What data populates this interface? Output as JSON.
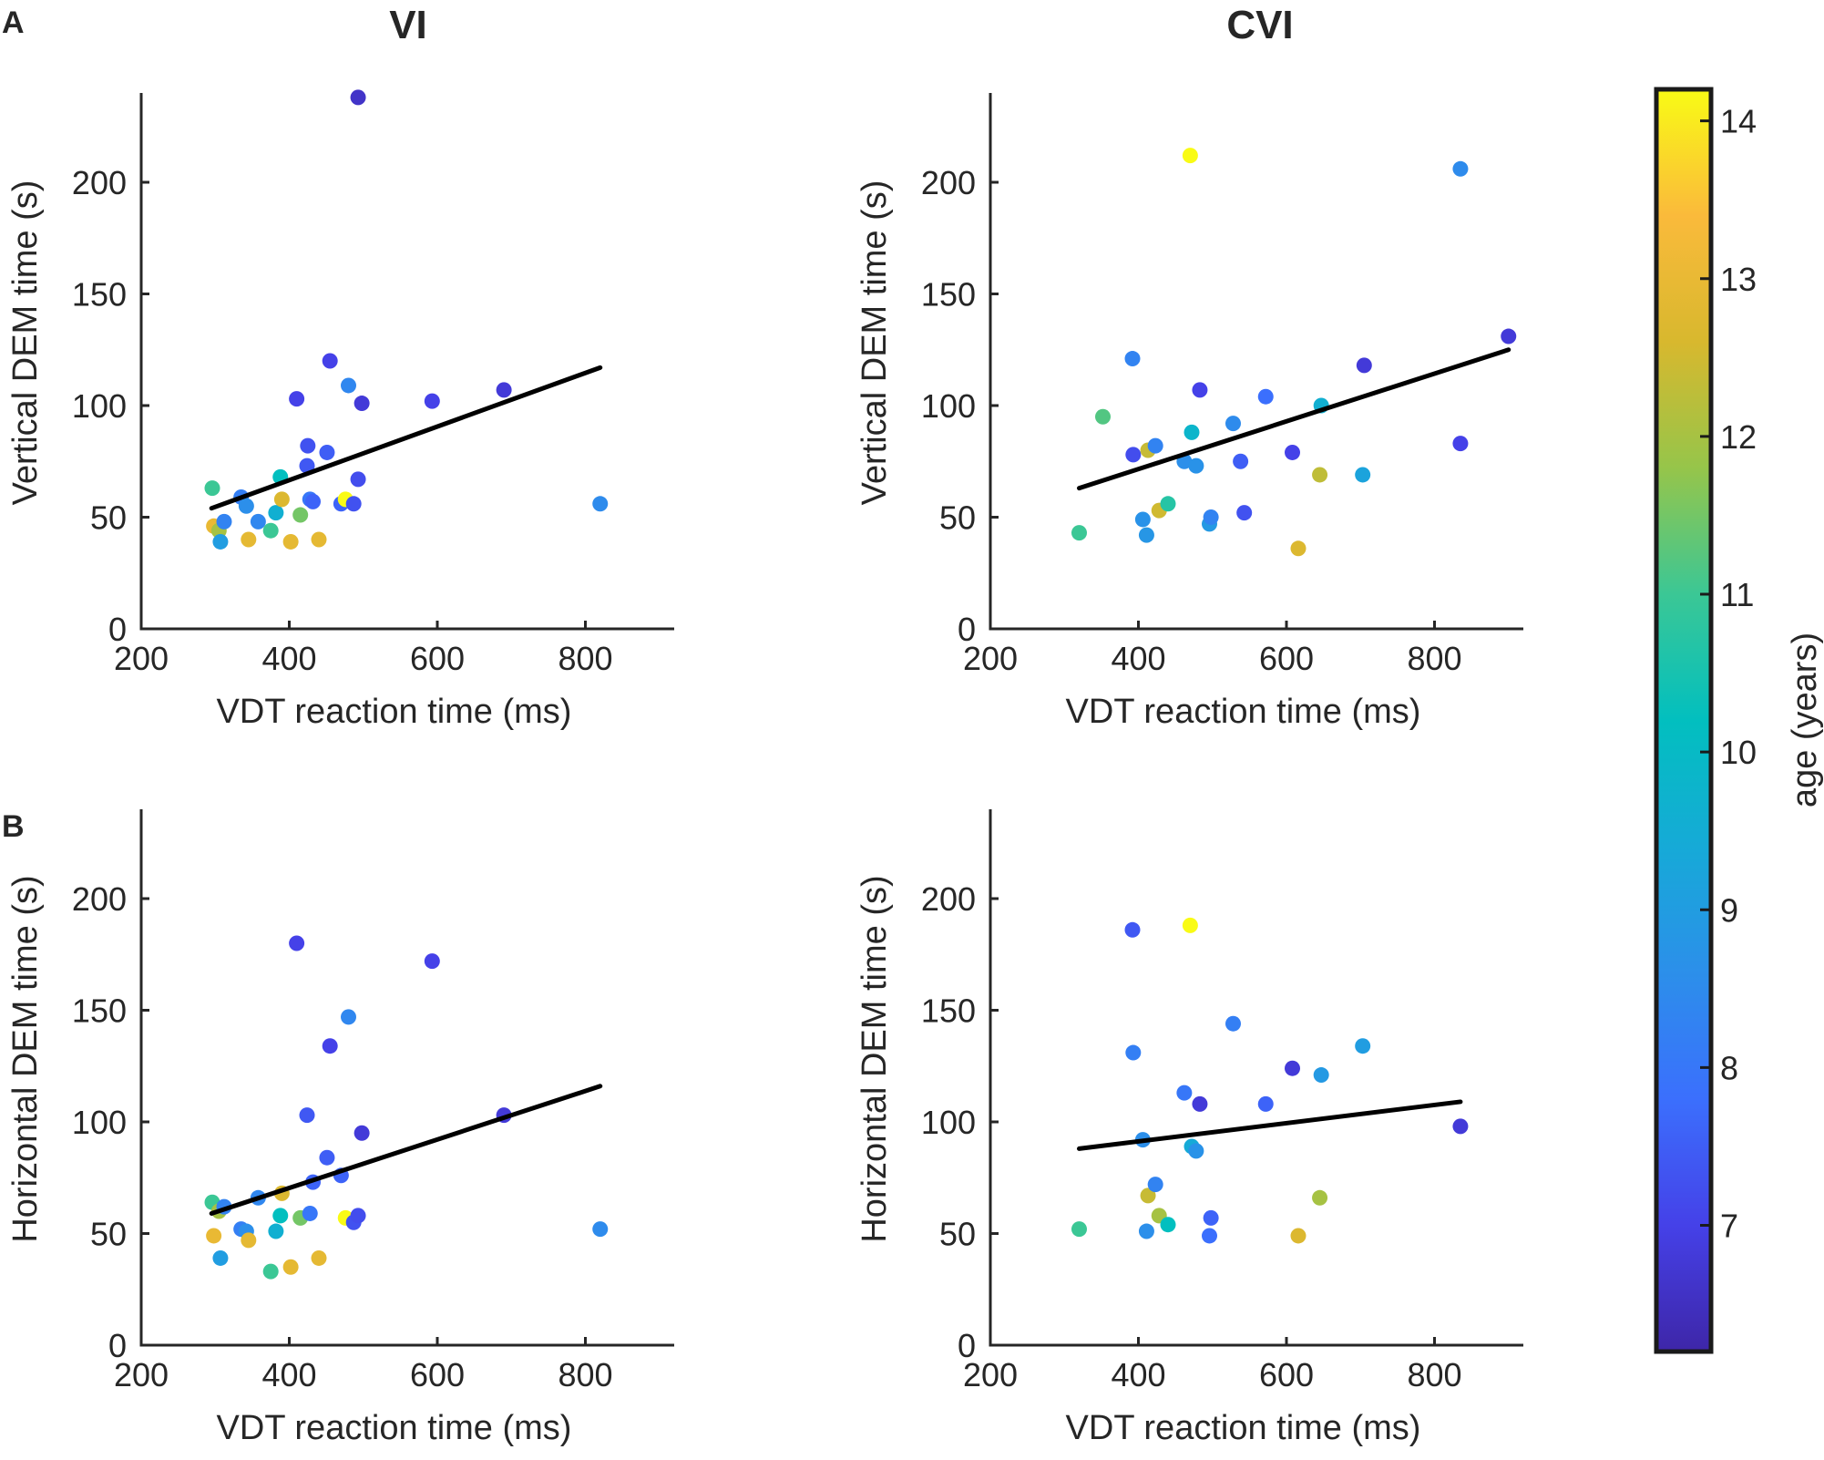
{
  "figure": {
    "panel_letters": [
      "A",
      "B"
    ],
    "column_titles": [
      "VI",
      "CVI"
    ]
  },
  "colorbar": {
    "label": "age (years)",
    "min": 6.2,
    "max": 14.2,
    "ticks": [
      7,
      8,
      9,
      10,
      11,
      12,
      13,
      14
    ],
    "colormap": "parula"
  },
  "chart_data": [
    {
      "id": "vi-vertical",
      "type": "scatter",
      "title": "VI",
      "xlabel": "VDT reaction time (ms)",
      "ylabel": "Vertical DEM time (s)",
      "xlim": [
        200,
        920
      ],
      "ylim": [
        0,
        240
      ],
      "xticks": [
        200,
        400,
        600,
        800
      ],
      "yticks": [
        0,
        50,
        100,
        150,
        200
      ],
      "fit_line": {
        "x": [
          295,
          820
        ],
        "y": [
          54,
          117
        ]
      },
      "points": [
        {
          "x": 296,
          "y": 63,
          "age": 11.0
        },
        {
          "x": 298,
          "y": 46,
          "age": 13.0
        },
        {
          "x": 305,
          "y": 44,
          "age": 12.0
        },
        {
          "x": 307,
          "y": 39,
          "age": 9.0
        },
        {
          "x": 312,
          "y": 48,
          "age": 8.3
        },
        {
          "x": 335,
          "y": 59,
          "age": 8.2
        },
        {
          "x": 342,
          "y": 55,
          "age": 8.6
        },
        {
          "x": 345,
          "y": 40,
          "age": 12.9
        },
        {
          "x": 358,
          "y": 48,
          "age": 8.4
        },
        {
          "x": 375,
          "y": 44,
          "age": 11.0
        },
        {
          "x": 382,
          "y": 52,
          "age": 9.6
        },
        {
          "x": 388,
          "y": 68,
          "age": 10.2
        },
        {
          "x": 390,
          "y": 58,
          "age": 12.7
        },
        {
          "x": 402,
          "y": 39,
          "age": 12.9
        },
        {
          "x": 410,
          "y": 103,
          "age": 7.0
        },
        {
          "x": 415,
          "y": 51,
          "age": 11.5
        },
        {
          "x": 424,
          "y": 73,
          "age": 7.4
        },
        {
          "x": 425,
          "y": 82,
          "age": 7.3
        },
        {
          "x": 428,
          "y": 58,
          "age": 8.0
        },
        {
          "x": 432,
          "y": 57,
          "age": 7.6
        },
        {
          "x": 440,
          "y": 40,
          "age": 12.9
        },
        {
          "x": 451,
          "y": 79,
          "age": 7.5
        },
        {
          "x": 455,
          "y": 120,
          "age": 7.0
        },
        {
          "x": 470,
          "y": 56,
          "age": 7.6
        },
        {
          "x": 476,
          "y": 58,
          "age": 14.2
        },
        {
          "x": 480,
          "y": 109,
          "age": 8.4
        },
        {
          "x": 487,
          "y": 56,
          "age": 7.3
        },
        {
          "x": 493,
          "y": 238,
          "age": 6.6
        },
        {
          "x": 493,
          "y": 67,
          "age": 7.2
        },
        {
          "x": 498,
          "y": 101,
          "age": 6.8
        },
        {
          "x": 593,
          "y": 102,
          "age": 7.0
        },
        {
          "x": 690,
          "y": 107,
          "age": 6.8
        },
        {
          "x": 820,
          "y": 56,
          "age": 8.5
        }
      ]
    },
    {
      "id": "cvi-vertical",
      "type": "scatter",
      "title": "CVI",
      "xlabel": "VDT reaction time (ms)",
      "ylabel": "Vertical DEM time (s)",
      "xlim": [
        200,
        920
      ],
      "ylim": [
        0,
        240
      ],
      "xticks": [
        200,
        400,
        600,
        800
      ],
      "yticks": [
        0,
        50,
        100,
        150,
        200
      ],
      "fit_line": {
        "x": [
          320,
          900
        ],
        "y": [
          63,
          125
        ]
      },
      "points": [
        {
          "x": 320,
          "y": 43,
          "age": 11.0
        },
        {
          "x": 352,
          "y": 95,
          "age": 11.2
        },
        {
          "x": 392,
          "y": 121,
          "age": 8.3
        },
        {
          "x": 393,
          "y": 78,
          "age": 7.2
        },
        {
          "x": 406,
          "y": 49,
          "age": 8.7
        },
        {
          "x": 411,
          "y": 42,
          "age": 8.8
        },
        {
          "x": 413,
          "y": 80,
          "age": 12.4
        },
        {
          "x": 423,
          "y": 82,
          "age": 8.3
        },
        {
          "x": 428,
          "y": 53,
          "age": 12.5
        },
        {
          "x": 440,
          "y": 56,
          "age": 10.7
        },
        {
          "x": 462,
          "y": 75,
          "age": 8.6
        },
        {
          "x": 470,
          "y": 212,
          "age": 14.2
        },
        {
          "x": 472,
          "y": 88,
          "age": 9.8
        },
        {
          "x": 478,
          "y": 73,
          "age": 8.7
        },
        {
          "x": 483,
          "y": 107,
          "age": 7.0
        },
        {
          "x": 496,
          "y": 47,
          "age": 8.9
        },
        {
          "x": 498,
          "y": 50,
          "age": 8.3
        },
        {
          "x": 528,
          "y": 92,
          "age": 8.5
        },
        {
          "x": 538,
          "y": 75,
          "age": 7.5
        },
        {
          "x": 543,
          "y": 52,
          "age": 7.3
        },
        {
          "x": 572,
          "y": 104,
          "age": 7.8
        },
        {
          "x": 608,
          "y": 79,
          "age": 7.0
        },
        {
          "x": 616,
          "y": 36,
          "age": 12.7
        },
        {
          "x": 645,
          "y": 69,
          "age": 12.3
        },
        {
          "x": 647,
          "y": 100,
          "age": 9.6
        },
        {
          "x": 703,
          "y": 69,
          "age": 9.2
        },
        {
          "x": 705,
          "y": 118,
          "age": 6.8
        },
        {
          "x": 835,
          "y": 206,
          "age": 8.5
        },
        {
          "x": 835,
          "y": 83,
          "age": 7.0
        },
        {
          "x": 900,
          "y": 131,
          "age": 6.8
        }
      ]
    },
    {
      "id": "vi-horizontal",
      "type": "scatter",
      "title": "",
      "xlabel": "VDT reaction time (ms)",
      "ylabel": "Horizontal DEM time (s)",
      "xlim": [
        200,
        920
      ],
      "ylim": [
        0,
        240
      ],
      "xticks": [
        200,
        400,
        600,
        800
      ],
      "yticks": [
        0,
        50,
        100,
        150,
        200
      ],
      "fit_line": {
        "x": [
          295,
          820
        ],
        "y": [
          59,
          116
        ]
      },
      "points": [
        {
          "x": 296,
          "y": 64,
          "age": 11.0
        },
        {
          "x": 298,
          "y": 49,
          "age": 13.0
        },
        {
          "x": 305,
          "y": 60,
          "age": 12.0
        },
        {
          "x": 307,
          "y": 39,
          "age": 9.0
        },
        {
          "x": 312,
          "y": 62,
          "age": 8.3
        },
        {
          "x": 335,
          "y": 52,
          "age": 8.2
        },
        {
          "x": 342,
          "y": 51,
          "age": 8.6
        },
        {
          "x": 345,
          "y": 47,
          "age": 12.9
        },
        {
          "x": 358,
          "y": 66,
          "age": 8.4
        },
        {
          "x": 375,
          "y": 33,
          "age": 11.0
        },
        {
          "x": 382,
          "y": 51,
          "age": 9.6
        },
        {
          "x": 388,
          "y": 58,
          "age": 10.2
        },
        {
          "x": 390,
          "y": 68,
          "age": 12.7
        },
        {
          "x": 402,
          "y": 35,
          "age": 12.9
        },
        {
          "x": 410,
          "y": 180,
          "age": 7.0
        },
        {
          "x": 415,
          "y": 57,
          "age": 11.5
        },
        {
          "x": 424,
          "y": 103,
          "age": 7.4
        },
        {
          "x": 428,
          "y": 59,
          "age": 8.0
        },
        {
          "x": 432,
          "y": 73,
          "age": 7.6
        },
        {
          "x": 440,
          "y": 39,
          "age": 12.9
        },
        {
          "x": 451,
          "y": 84,
          "age": 7.5
        },
        {
          "x": 455,
          "y": 134,
          "age": 7.0
        },
        {
          "x": 470,
          "y": 76,
          "age": 7.6
        },
        {
          "x": 476,
          "y": 57,
          "age": 14.2
        },
        {
          "x": 480,
          "y": 147,
          "age": 8.4
        },
        {
          "x": 487,
          "y": 55,
          "age": 7.3
        },
        {
          "x": 493,
          "y": 58,
          "age": 7.2
        },
        {
          "x": 498,
          "y": 95,
          "age": 6.8
        },
        {
          "x": 593,
          "y": 172,
          "age": 7.0
        },
        {
          "x": 690,
          "y": 103,
          "age": 6.8
        },
        {
          "x": 820,
          "y": 52,
          "age": 8.5
        }
      ]
    },
    {
      "id": "cvi-horizontal",
      "type": "scatter",
      "title": "",
      "xlabel": "VDT reaction time (ms)",
      "ylabel": "Horizontal DEM time (s)",
      "xlim": [
        200,
        920
      ],
      "ylim": [
        0,
        240
      ],
      "xticks": [
        200,
        400,
        600,
        800
      ],
      "yticks": [
        0,
        50,
        100,
        150,
        200
      ],
      "fit_line": {
        "x": [
          320,
          835
        ],
        "y": [
          88,
          109
        ]
      },
      "points": [
        {
          "x": 320,
          "y": 52,
          "age": 11.0
        },
        {
          "x": 392,
          "y": 186,
          "age": 7.4
        },
        {
          "x": 393,
          "y": 131,
          "age": 8.2
        },
        {
          "x": 406,
          "y": 92,
          "age": 8.6
        },
        {
          "x": 411,
          "y": 51,
          "age": 8.6
        },
        {
          "x": 413,
          "y": 67,
          "age": 12.4
        },
        {
          "x": 423,
          "y": 72,
          "age": 8.3
        },
        {
          "x": 428,
          "y": 58,
          "age": 12.0
        },
        {
          "x": 440,
          "y": 54,
          "age": 10.2
        },
        {
          "x": 462,
          "y": 113,
          "age": 8.0
        },
        {
          "x": 470,
          "y": 188,
          "age": 14.2
        },
        {
          "x": 472,
          "y": 89,
          "age": 9.4
        },
        {
          "x": 478,
          "y": 87,
          "age": 8.7
        },
        {
          "x": 483,
          "y": 108,
          "age": 6.8
        },
        {
          "x": 496,
          "y": 49,
          "age": 7.8
        },
        {
          "x": 498,
          "y": 57,
          "age": 7.6
        },
        {
          "x": 528,
          "y": 144,
          "age": 8.2
        },
        {
          "x": 572,
          "y": 108,
          "age": 7.6
        },
        {
          "x": 608,
          "y": 124,
          "age": 6.8
        },
        {
          "x": 616,
          "y": 49,
          "age": 12.7
        },
        {
          "x": 645,
          "y": 66,
          "age": 12.0
        },
        {
          "x": 647,
          "y": 121,
          "age": 8.9
        },
        {
          "x": 703,
          "y": 134,
          "age": 9.0
        },
        {
          "x": 835,
          "y": 98,
          "age": 6.8
        }
      ]
    }
  ]
}
